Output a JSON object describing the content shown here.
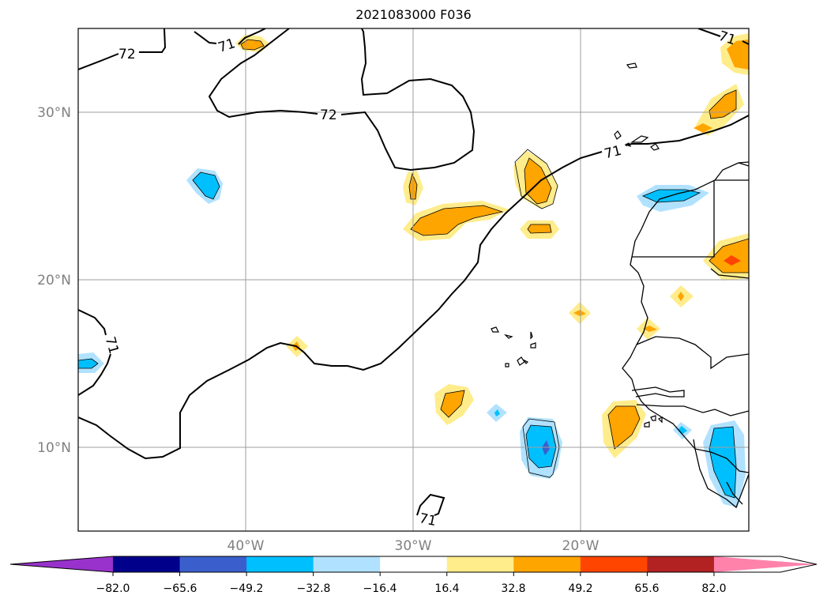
{
  "title": "2021083000 F036",
  "axes": {
    "lat_labels": [
      "30°N",
      "20°N",
      "10°N"
    ],
    "lon_labels": [
      "40°W",
      "30°W",
      "20°W"
    ]
  },
  "contour_labels": [
    "72",
    "71",
    "72",
    "71",
    "71",
    "71",
    "71"
  ],
  "colorbar": {
    "tick_labels": [
      "−82.0",
      "−65.6",
      "−49.2",
      "−32.8",
      "−16.4",
      "16.4",
      "32.8",
      "49.2",
      "65.6",
      "82.0"
    ],
    "colors": [
      "#9932cc",
      "#00008b",
      "#3a5fcd",
      "#00bfff",
      "#b0e2ff",
      "#ffffff",
      "#ffec8b",
      "#ffa500",
      "#ff4500",
      "#b22222",
      "#ff82ab"
    ]
  },
  "fill_colors": {
    "light_yellow": "#ffec8b",
    "orange": "#ffa500",
    "red_orange": "#ff4500",
    "light_blue": "#b0e2ff",
    "deep_sky_blue": "#00bfff",
    "royal_blue": "#3a5fcd"
  }
}
